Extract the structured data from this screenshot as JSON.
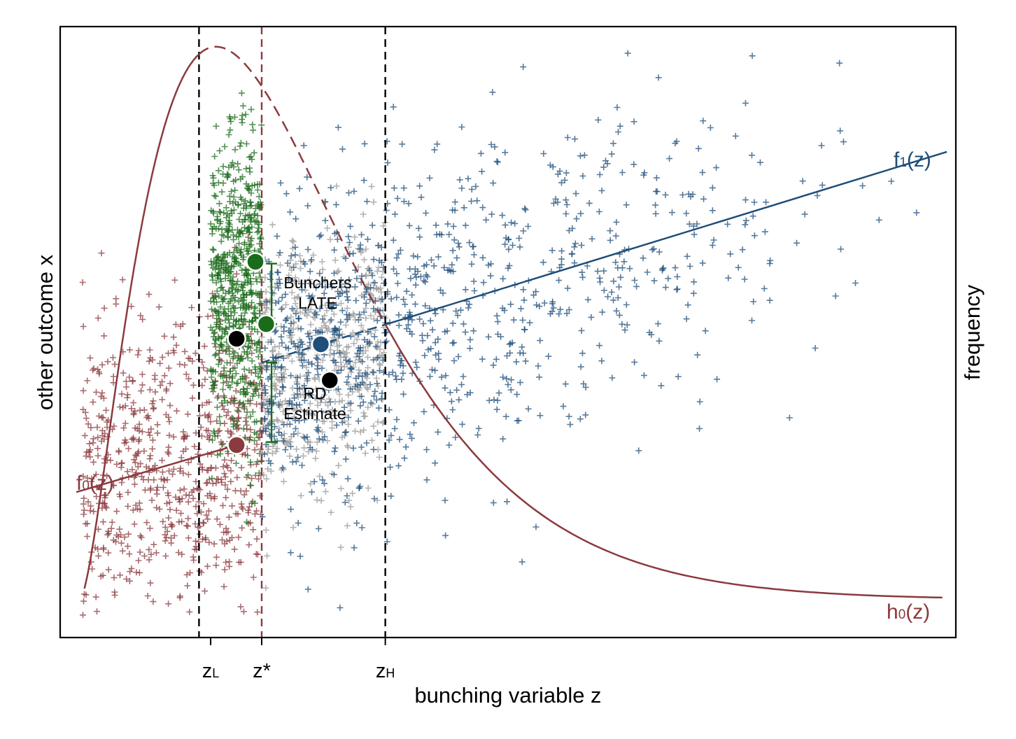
{
  "chart_data": {
    "type": "scatter",
    "title": "",
    "xlabel": "bunching variable z",
    "ylabel": "other outcome x",
    "y2label": "frequency",
    "xlim": [
      0,
      10
    ],
    "ylim": [
      0,
      10
    ],
    "grid": false,
    "legend": "none",
    "x_ticks": [
      {
        "label": "z",
        "sub": "L",
        "x": 1.68
      },
      {
        "label": "z*",
        "sub": "",
        "x": 2.25
      },
      {
        "label": "z",
        "sub": "H",
        "x": 3.63
      }
    ],
    "vlines": [
      {
        "x": 1.55,
        "style": "dashed",
        "color": "#000000"
      },
      {
        "x": 2.25,
        "style": "dashed",
        "color": "#8b3a3e"
      },
      {
        "x": 3.63,
        "style": "dashed",
        "color": "#000000"
      }
    ],
    "colors": {
      "red": "#8b3a3e",
      "green": "#1a6b1a",
      "gray": "#9a9a9a",
      "blue": "#1f4e79",
      "black": "#000000"
    },
    "scatter_groups": [
      {
        "name": "untreated",
        "color": "#8b3a3e",
        "n": 700,
        "x_range": [
          0.25,
          2.25
        ],
        "center": [
          1.1,
          2.8
        ],
        "spread": 1.2,
        "trend_slope": 0.3
      },
      {
        "name": "bunchers",
        "color": "#1a6b1a",
        "n": 650,
        "x_range": [
          1.68,
          2.25
        ],
        "center": [
          1.97,
          5.6
        ],
        "spread": 1.3,
        "trend_slope": 0
      },
      {
        "name": "gray",
        "color": "#9a9a9a",
        "n": 500,
        "x_range": [
          2.25,
          3.63
        ],
        "center": [
          2.95,
          4.5
        ],
        "spread": 1.05,
        "trend_slope": 0.3
      },
      {
        "name": "treated",
        "color": "#1f4e79",
        "n": 950,
        "x_range": [
          2.25,
          9.9
        ],
        "center": [
          5.5,
          5.8
        ],
        "spread": 1.3,
        "trend_slope": 0.42
      }
    ],
    "lines": [
      {
        "name": "f₀(z)",
        "color": "#8b3a3e",
        "x": [
          0.18,
          1.97
        ],
        "y": [
          2.38,
          3.15
        ],
        "solid_to": 1.97
      },
      {
        "name": "f₁(z)",
        "color": "#1f4e79",
        "x": [
          2.25,
          9.9
        ],
        "y": [
          4.5,
          7.95
        ],
        "dashed_until": 3.63
      },
      {
        "name": "h₀(z)",
        "color": "#8b3a3e",
        "type": "density",
        "peak_x": 2.25,
        "dashed_between": [
          1.55,
          3.63
        ]
      }
    ],
    "markers": [
      {
        "name": "green-upper",
        "x": 2.18,
        "y": 6.15,
        "color": "#1a6b1a"
      },
      {
        "name": "green-lower",
        "x": 2.3,
        "y": 5.13,
        "color": "#1a6b1a"
      },
      {
        "name": "black-left",
        "x": 1.97,
        "y": 4.89,
        "color": "#000000"
      },
      {
        "name": "blue-mid",
        "x": 2.91,
        "y": 4.8,
        "color": "#1f4e79"
      },
      {
        "name": "black-right",
        "x": 3.01,
        "y": 4.21,
        "color": "#000000"
      },
      {
        "name": "red-left",
        "x": 1.97,
        "y": 3.15,
        "color": "#8b3a3e"
      }
    ],
    "brackets": [
      {
        "color": "#1a6b1a",
        "x": 2.36,
        "y_from": 6.12,
        "y_to": 5.13
      },
      {
        "color": "#1a6b1a",
        "x": 2.36,
        "y_from": 4.5,
        "y_to": 3.2
      }
    ],
    "annotations": [
      {
        "lines": [
          "Bunchers",
          "LATE"
        ]
      },
      {
        "lines": [
          "RD",
          "Estimate"
        ]
      }
    ],
    "curve_labels": [
      {
        "text": "f",
        "sub": "1",
        "rest": "(z)",
        "color": "#1f4e79"
      },
      {
        "text": "f",
        "sub": "0",
        "rest": "(z)",
        "color": "#8b3a3e"
      },
      {
        "text": "h",
        "sub": "0",
        "rest": "(z)",
        "color": "#8b3a3e"
      }
    ]
  }
}
